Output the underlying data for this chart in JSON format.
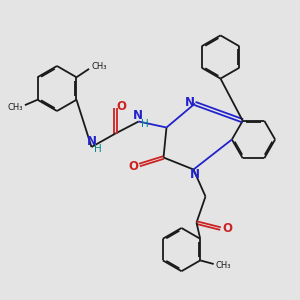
{
  "bg_color": "#e4e4e4",
  "bond_color": "#1a1a1a",
  "N_color": "#2222cc",
  "O_color": "#cc2222",
  "NH_color": "#008888",
  "lw": 1.3,
  "doff": 0.055,
  "fig_w": 3.0,
  "fig_h": 3.0,
  "dpi": 100,
  "xlim": [
    0,
    10
  ],
  "ylim": [
    0,
    10
  ]
}
